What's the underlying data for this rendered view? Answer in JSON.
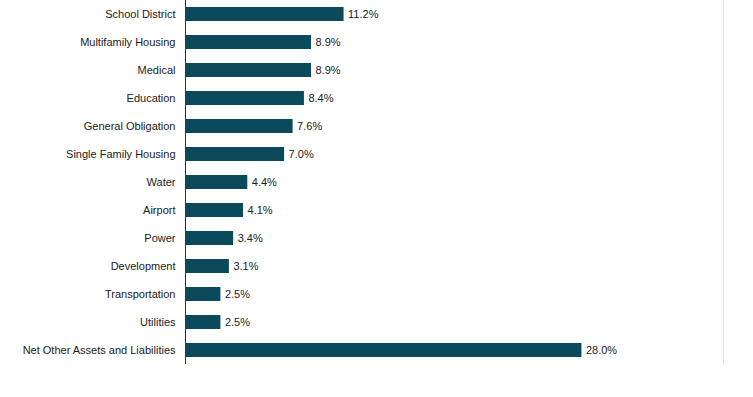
{
  "chart_data": {
    "type": "bar",
    "orientation": "horizontal",
    "categories": [
      "School District",
      "Multifamily Housing",
      "Medical",
      "Education",
      "General Obligation",
      "Single Family Housing",
      "Water",
      "Airport",
      "Power",
      "Development",
      "Transportation",
      "Utilities",
      "Net Other Assets and Liabilities"
    ],
    "values": [
      11.2,
      8.9,
      8.9,
      8.4,
      7.6,
      7.0,
      4.4,
      4.1,
      3.4,
      3.1,
      2.5,
      2.5,
      28.0
    ],
    "value_labels": [
      "11.2%",
      "8.9%",
      "8.9%",
      "8.4%",
      "7.6%",
      "7.0%",
      "4.4%",
      "4.1%",
      "3.4%",
      "3.1%",
      "2.5%",
      "2.5%",
      "28.0%"
    ],
    "color": "#0b4a5b",
    "xlim": [
      0,
      38
    ],
    "xticks": [],
    "data_labels": true,
    "tick_labels": "y",
    "grid": false
  }
}
